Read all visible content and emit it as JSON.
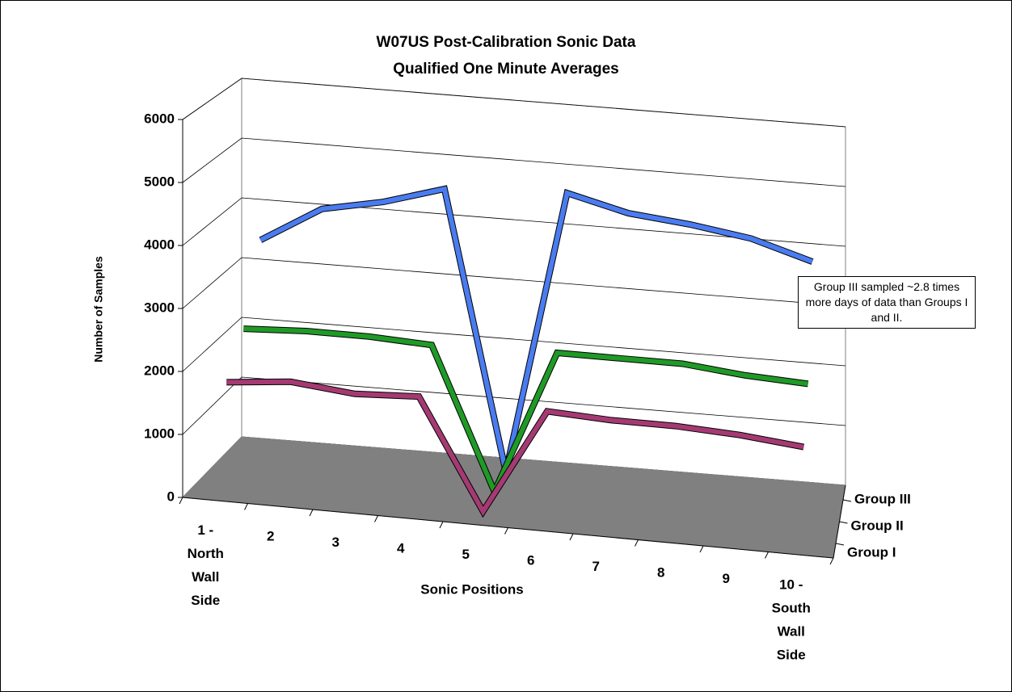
{
  "chart_data": {
    "type": "line3d",
    "title": "W07US Post-Calibration Sonic Data",
    "subtitle": "Qualified One Minute Averages",
    "x_label": "Sonic Positions",
    "y_label": "Number of Samples",
    "annotation": "Group III sampled ~2.8 times more days of data than Groups I and II.",
    "categories": [
      "1 - North Wall Side",
      "2",
      "3",
      "4",
      "5",
      "6",
      "7",
      "8",
      "9",
      "10 - South Wall Side"
    ],
    "ylim": [
      0,
      6000
    ],
    "yticks": [
      0,
      1000,
      2000,
      3000,
      4000,
      5000,
      6000
    ],
    "grid": true,
    "series": [
      {
        "name": "Group I",
        "color": "#a53a73",
        "values": [
          1700,
          1800,
          1700,
          1750,
          0,
          1700,
          1650,
          1650,
          1600,
          1500
        ]
      },
      {
        "name": "Group II",
        "color": "#1f9a26",
        "values": [
          2300,
          2350,
          2350,
          2300,
          0,
          2350,
          2350,
          2350,
          2250,
          2200
        ]
      },
      {
        "name": "Group III",
        "color": "#4a7cf0",
        "values": [
          3500,
          4100,
          4300,
          4600,
          0,
          4700,
          4450,
          4350,
          4200,
          3900
        ]
      }
    ]
  }
}
